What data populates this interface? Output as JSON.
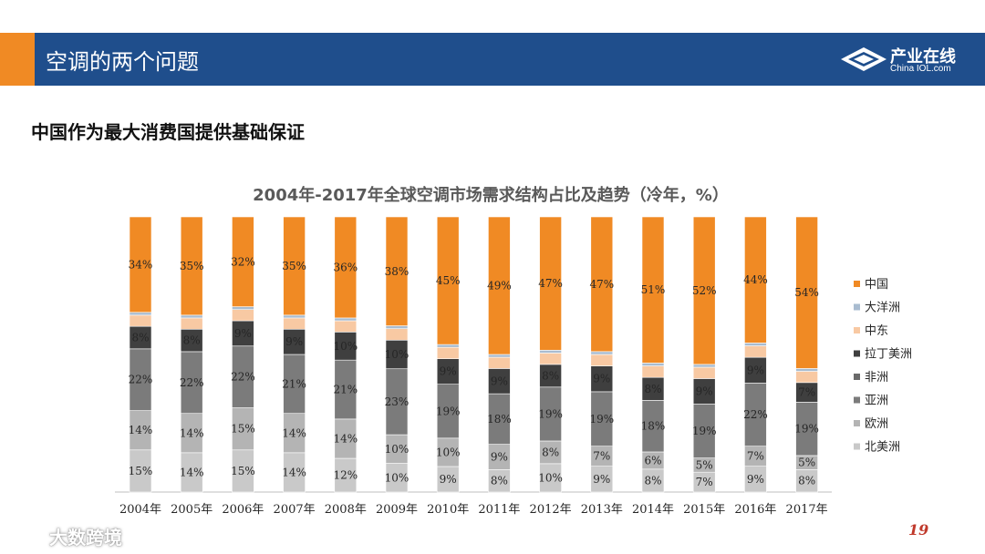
{
  "header": {
    "title": "空调的两个问题"
  },
  "logo": {
    "name": "产业在线",
    "domain": "China IOL.com"
  },
  "subtitle": "中国作为最大消费国提供基础保证",
  "page_number": "19",
  "watermark": "大数跨境",
  "colors": {
    "header_bg": "#1f4e8c",
    "accent": "#f08a24"
  },
  "chart_data": {
    "type": "bar",
    "stacked": true,
    "percent": true,
    "title": "2004年-2017年全球空调市场需求结构占比及趋势（冷年，%）",
    "xlabel": "",
    "ylabel": "",
    "ylim": [
      0,
      100
    ],
    "legend_position": "right",
    "categories": [
      "2004年",
      "2005年",
      "2006年",
      "2007年",
      "2008年",
      "2009年",
      "2010年",
      "2011年",
      "2012年",
      "2013年",
      "2014年",
      "2015年",
      "2016年",
      "2017年"
    ],
    "series": [
      {
        "name": "北美洲",
        "color": "#c9c9c9",
        "values": [
          15,
          14,
          15,
          14,
          12,
          10,
          9,
          8,
          10,
          9,
          8,
          7,
          9,
          8
        ],
        "labels": [
          "15%",
          "14%",
          "15%",
          "14%",
          "12%",
          "10%",
          "9%",
          "8%",
          "10%",
          "9%",
          "8%",
          "7%",
          "9%",
          "8%"
        ]
      },
      {
        "name": "欧洲",
        "color": "#b4b4b4",
        "values": [
          14,
          14,
          15,
          14,
          14,
          10,
          10,
          9,
          8,
          7,
          6,
          5,
          7,
          5
        ],
        "labels": [
          "14%",
          "14%",
          "15%",
          "14%",
          "14%",
          "10%",
          "10%",
          "9%",
          "8%",
          "7%",
          "6%",
          "5%",
          "7%",
          "5%"
        ]
      },
      {
        "name": "亚洲",
        "color": "#7b7b7b",
        "values": [
          22,
          22,
          22,
          21,
          21,
          23,
          19,
          18,
          19,
          19,
          18,
          19,
          22,
          19
        ],
        "labels": [
          "22%",
          "22%",
          "22%",
          "21%",
          "21%",
          "23%",
          "19%",
          "18%",
          "19%",
          "19%",
          "18%",
          "19%",
          "22%",
          "19%"
        ]
      },
      {
        "name": "非洲",
        "color": "#6a6a6a",
        "values": [
          0,
          0,
          0,
          0,
          0,
          0,
          0,
          0,
          0,
          0,
          0,
          0,
          0,
          0
        ],
        "labels": [
          "",
          "",
          "",
          "",
          "",
          "",
          "",
          "",
          "",
          "",
          "",
          "",
          "",
          ""
        ]
      },
      {
        "name": "拉丁美洲",
        "color": "#3f3f3f",
        "values": [
          8,
          8,
          9,
          9,
          10,
          10,
          9,
          9,
          8,
          9,
          8,
          9,
          9,
          7
        ],
        "labels": [
          "8%",
          "8%",
          "9%",
          "9%",
          "10%",
          "10%",
          "9%",
          "9%",
          "8%",
          "9%",
          "8%",
          "9%",
          "9%",
          "7%"
        ]
      },
      {
        "name": "中东",
        "color": "#f8c9a3",
        "values": [
          4,
          4,
          4,
          4,
          4,
          4,
          4,
          4,
          4,
          4,
          4,
          4,
          4,
          4
        ],
        "labels": [
          "",
          "",
          "",
          "",
          "",
          "",
          "",
          "",
          "",
          "",
          "",
          "",
          "",
          ""
        ]
      },
      {
        "name": "大洋洲",
        "color": "#a9bcd0",
        "values": [
          1,
          1,
          1,
          1,
          1,
          1,
          1,
          1,
          1,
          1,
          1,
          1,
          1,
          1
        ],
        "labels": [
          "",
          "",
          "",
          "",
          "",
          "",
          "",
          "",
          "",
          "",
          "",
          "",
          "",
          ""
        ]
      },
      {
        "name": "中国",
        "color": "#f08a24",
        "values": [
          34,
          35,
          32,
          35,
          36,
          38,
          45,
          49,
          47,
          47,
          51,
          52,
          44,
          54
        ],
        "labels": [
          "34%",
          "35%",
          "32%",
          "35%",
          "36%",
          "38%",
          "45%",
          "49%",
          "47%",
          "47%",
          "51%",
          "52%",
          "44%",
          "54%"
        ]
      }
    ],
    "legend_order": [
      "中国",
      "大洋洲",
      "中东",
      "拉丁美洲",
      "非洲",
      "亚洲",
      "欧洲",
      "北美洲"
    ]
  }
}
